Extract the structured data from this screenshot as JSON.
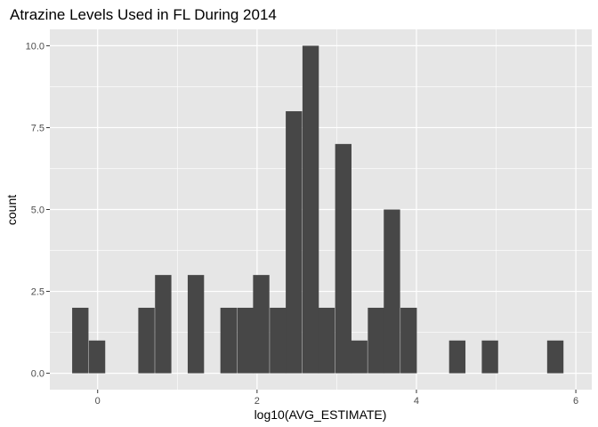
{
  "chart_data": {
    "type": "bar",
    "title": "Atrazine Levels Used in FL During 2014",
    "xlabel": "log10(AVG_ESTIMATE)",
    "ylabel": "count",
    "xlim": [
      -0.6,
      6.2
    ],
    "ylim": [
      -0.5,
      10.5
    ],
    "x_ticks": [
      0,
      2,
      4,
      6
    ],
    "x_tick_labels": [
      "0",
      "2",
      "4",
      "6"
    ],
    "y_ticks": [
      0,
      2.5,
      5,
      7.5,
      10
    ],
    "y_tick_labels": [
      "0.0",
      "2.5",
      "5.0",
      "7.5",
      "10.0"
    ],
    "grid": true,
    "bin_width": 0.205,
    "bins": [
      {
        "start": -0.32,
        "count": 2
      },
      {
        "start": -0.11,
        "count": 1
      },
      {
        "start": 0.51,
        "count": 2
      },
      {
        "start": 0.72,
        "count": 3
      },
      {
        "start": 1.13,
        "count": 3
      },
      {
        "start": 1.54,
        "count": 2
      },
      {
        "start": 1.75,
        "count": 2
      },
      {
        "start": 1.95,
        "count": 3
      },
      {
        "start": 2.16,
        "count": 2
      },
      {
        "start": 2.36,
        "count": 8
      },
      {
        "start": 2.57,
        "count": 10
      },
      {
        "start": 2.77,
        "count": 2
      },
      {
        "start": 2.98,
        "count": 7
      },
      {
        "start": 3.18,
        "count": 1
      },
      {
        "start": 3.39,
        "count": 2
      },
      {
        "start": 3.59,
        "count": 5
      },
      {
        "start": 3.8,
        "count": 2
      },
      {
        "start": 4.41,
        "count": 1
      },
      {
        "start": 4.82,
        "count": 1
      },
      {
        "start": 5.64,
        "count": 1
      }
    ],
    "bar_color": "#474747",
    "panel_color": "#e6e6e6",
    "grid_color": "#ffffff"
  }
}
